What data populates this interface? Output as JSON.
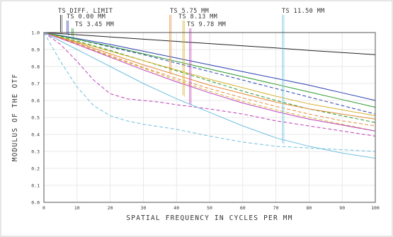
{
  "chart_data": {
    "type": "line",
    "title": "",
    "xlabel": "SPATIAL FREQUENCY IN CYCLES PER MM",
    "ylabel": "MODULUS OF THE OTF",
    "xlim": [
      0,
      100
    ],
    "ylim": [
      0,
      1
    ],
    "grid": true,
    "x_ticks": [
      {
        "value": 0,
        "label": "0"
      },
      {
        "value": 10,
        "label": "10"
      },
      {
        "value": 20,
        "label": "20"
      },
      {
        "value": 30,
        "label": "30"
      },
      {
        "value": 40,
        "label": "40"
      },
      {
        "value": 50,
        "label": "50"
      },
      {
        "value": 60,
        "label": "60"
      },
      {
        "value": 70,
        "label": "70"
      },
      {
        "value": 80,
        "label": "80"
      },
      {
        "value": 90,
        "label": "90"
      },
      {
        "value": 100,
        "label": "100"
      }
    ],
    "y_ticks": [
      {
        "value": 0,
        "label": "0.0"
      },
      {
        "value": 0.1,
        "label": "0.1"
      },
      {
        "value": 0.2,
        "label": "0.2"
      },
      {
        "value": 0.3,
        "label": "0.3"
      },
      {
        "value": 0.4,
        "label": "0.4"
      },
      {
        "value": 0.5,
        "label": "0.5"
      },
      {
        "value": 0.6,
        "label": "0.6"
      },
      {
        "value": 0.7,
        "label": "0.7"
      },
      {
        "value": 0.8,
        "label": "0.8"
      },
      {
        "value": 0.9,
        "label": "0.9"
      },
      {
        "value": 1.0,
        "label": "1.0"
      }
    ],
    "legend": [
      {
        "text": "TS DIFF. LIMIT",
        "color": "#222222",
        "x": 5,
        "y_end": 1.0
      },
      {
        "text": "TS 0.00 MM",
        "color": "#2a3fae",
        "x": 7,
        "y_end": 0.99
      },
      {
        "text": "TS 3.45 MM",
        "color": "#2a9a2a",
        "x": 8.5,
        "y_end": 0.98
      },
      {
        "text": "TS 5.75 MM",
        "color": "#e58a3a",
        "x": 38,
        "y_end": 0.76
      },
      {
        "text": "TS 8.13 MM",
        "color": "#d6b030",
        "x": 42,
        "y_end": 0.63
      },
      {
        "text": "TS 9.78 MM",
        "color": "#c040b8",
        "x": 44,
        "y_end": 0.58
      },
      {
        "text": "TS 11.50 MM",
        "color": "#70c0e0",
        "x": 72,
        "y_end": 0.35
      }
    ],
    "series": [
      {
        "color": "#222222",
        "dash": "",
        "x": [
          0,
          10,
          20,
          30,
          40,
          50,
          60,
          70,
          80,
          90,
          100
        ],
        "y": [
          1.0,
          0.987,
          0.974,
          0.961,
          0.948,
          0.935,
          0.922,
          0.909,
          0.895,
          0.882,
          0.87
        ]
      },
      {
        "color": "#2a3fae",
        "dash": "",
        "x": [
          0,
          10,
          20,
          30,
          40,
          50,
          60,
          70,
          80,
          90,
          100
        ],
        "y": [
          1.0,
          0.965,
          0.93,
          0.89,
          0.85,
          0.81,
          0.77,
          0.73,
          0.69,
          0.645,
          0.6
        ]
      },
      {
        "color": "#2a3fae",
        "dash": "5,3",
        "x": [
          0,
          10,
          20,
          30,
          40,
          50,
          60,
          70,
          80,
          90,
          100
        ],
        "y": [
          1.0,
          0.96,
          0.915,
          0.87,
          0.82,
          0.77,
          0.72,
          0.67,
          0.62,
          0.57,
          0.52
        ]
      },
      {
        "color": "#2a9a2a",
        "dash": "",
        "x": [
          0,
          10,
          20,
          30,
          40,
          50,
          60,
          70,
          80,
          90,
          100
        ],
        "y": [
          1.0,
          0.96,
          0.92,
          0.875,
          0.83,
          0.785,
          0.74,
          0.695,
          0.65,
          0.605,
          0.56
        ]
      },
      {
        "color": "#2a9a2a",
        "dash": "5,3",
        "x": [
          0,
          10,
          20,
          30,
          40,
          50,
          60,
          70,
          80,
          90,
          100
        ],
        "y": [
          1.0,
          0.95,
          0.895,
          0.835,
          0.775,
          0.715,
          0.655,
          0.6,
          0.55,
          0.51,
          0.47
        ]
      },
      {
        "color": "#e58a3a",
        "dash": "",
        "x": [
          0,
          10,
          20,
          30,
          40,
          50,
          60,
          70,
          80,
          90,
          100
        ],
        "y": [
          1.0,
          0.94,
          0.875,
          0.81,
          0.75,
          0.69,
          0.64,
          0.59,
          0.55,
          0.52,
          0.49
        ]
      },
      {
        "color": "#e58a3a",
        "dash": "5,3",
        "x": [
          0,
          10,
          20,
          30,
          40,
          50,
          60,
          70,
          80,
          90,
          100
        ],
        "y": [
          1.0,
          0.935,
          0.865,
          0.795,
          0.73,
          0.67,
          0.615,
          0.565,
          0.52,
          0.48,
          0.45
        ]
      },
      {
        "color": "#d6b030",
        "dash": "",
        "x": [
          0,
          10,
          20,
          30,
          40,
          50,
          60,
          70,
          80,
          90,
          100
        ],
        "y": [
          1.0,
          0.945,
          0.89,
          0.835,
          0.78,
          0.725,
          0.675,
          0.625,
          0.58,
          0.545,
          0.51
        ]
      },
      {
        "color": "#d6b030",
        "dash": "5,3",
        "x": [
          0,
          10,
          20,
          30,
          40,
          50,
          60,
          70,
          80,
          90,
          100
        ],
        "y": [
          1.0,
          0.93,
          0.86,
          0.79,
          0.72,
          0.655,
          0.595,
          0.545,
          0.5,
          0.46,
          0.42
        ]
      },
      {
        "color": "#c040b8",
        "dash": "",
        "x": [
          0,
          10,
          20,
          30,
          40,
          50,
          60,
          70,
          80,
          90,
          100
        ],
        "y": [
          1.0,
          0.93,
          0.855,
          0.78,
          0.71,
          0.645,
          0.585,
          0.535,
          0.49,
          0.455,
          0.42
        ]
      },
      {
        "color": "#c040b8",
        "dash": "5,3",
        "x": [
          0,
          5,
          10,
          15,
          20,
          25,
          30,
          35,
          40,
          50,
          60,
          70,
          80,
          90,
          100
        ],
        "y": [
          1.0,
          0.93,
          0.83,
          0.72,
          0.64,
          0.61,
          0.6,
          0.59,
          0.575,
          0.55,
          0.52,
          0.48,
          0.45,
          0.42,
          0.39
        ]
      },
      {
        "color": "#70c0e0",
        "dash": "",
        "x": [
          0,
          10,
          20,
          30,
          40,
          50,
          60,
          70,
          80,
          90,
          100
        ],
        "y": [
          1.0,
          0.9,
          0.8,
          0.7,
          0.61,
          0.53,
          0.45,
          0.38,
          0.33,
          0.29,
          0.26
        ]
      },
      {
        "color": "#70c0e0",
        "dash": "5,3",
        "x": [
          0,
          5,
          10,
          15,
          20,
          25,
          30,
          40,
          50,
          60,
          70,
          80,
          90,
          100
        ],
        "y": [
          1.0,
          0.83,
          0.68,
          0.57,
          0.51,
          0.48,
          0.46,
          0.43,
          0.39,
          0.355,
          0.33,
          0.32,
          0.31,
          0.3
        ]
      }
    ]
  }
}
